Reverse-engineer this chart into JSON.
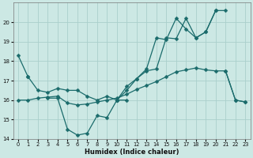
{
  "xlabel": "Humidex (Indice chaleur)",
  "bg_color": "#cce8e4",
  "line_color": "#1a6b6b",
  "grid_color": "#aacfcc",
  "ylim": [
    14,
    21
  ],
  "yticks": [
    14,
    15,
    16,
    17,
    18,
    19,
    20
  ],
  "xlim": [
    -0.5,
    23.5
  ],
  "xticks": [
    0,
    1,
    2,
    3,
    4,
    5,
    6,
    7,
    8,
    9,
    10,
    11,
    12,
    13,
    14,
    15,
    16,
    17,
    18,
    19,
    20,
    21,
    22,
    23
  ],
  "lines": [
    {
      "x": [
        0,
        1
      ],
      "y": [
        18.3,
        17.2
      ]
    },
    {
      "comment": "bottom dip line: 3->4->5->6->7->8->9->10->11",
      "x": [
        3,
        4,
        5,
        6,
        7,
        8,
        9,
        10,
        11
      ],
      "y": [
        16.1,
        16.1,
        14.5,
        14.2,
        14.3,
        15.2,
        15.1,
        16.0,
        16.0
      ]
    },
    {
      "x": [
        1,
        2,
        3,
        4,
        5,
        6,
        7,
        8,
        9,
        10,
        11,
        12,
        13,
        14,
        15,
        16,
        17,
        18,
        19,
        20
      ],
      "y": [
        17.2,
        16.5,
        16.4,
        16.6,
        16.5,
        16.5,
        16.2,
        16.0,
        16.2,
        16.0,
        16.7,
        17.1,
        17.5,
        17.6,
        19.2,
        19.15,
        20.2,
        19.2,
        19.5,
        20.6
      ]
    },
    {
      "x": [
        10,
        11,
        12,
        13,
        14,
        15,
        16,
        17,
        18,
        19,
        20,
        21
      ],
      "y": [
        16.0,
        16.5,
        17.1,
        17.6,
        19.2,
        19.1,
        20.2,
        19.65,
        19.2,
        19.5,
        20.6,
        20.6
      ]
    },
    {
      "x": [
        0,
        1,
        2,
        3,
        4,
        5,
        6,
        7,
        8,
        9,
        10,
        11,
        12,
        13,
        14,
        15,
        16,
        17,
        18,
        19,
        20,
        21,
        22,
        23
      ],
      "y": [
        16.0,
        16.0,
        16.1,
        16.15,
        16.2,
        15.85,
        15.75,
        15.8,
        15.9,
        16.0,
        16.1,
        16.3,
        16.55,
        16.75,
        16.95,
        17.2,
        17.45,
        17.55,
        17.65,
        17.55,
        17.5,
        17.5,
        16.0,
        15.9
      ]
    },
    {
      "x": [
        21,
        22,
        23
      ],
      "y": [
        17.5,
        16.0,
        15.9
      ]
    }
  ]
}
